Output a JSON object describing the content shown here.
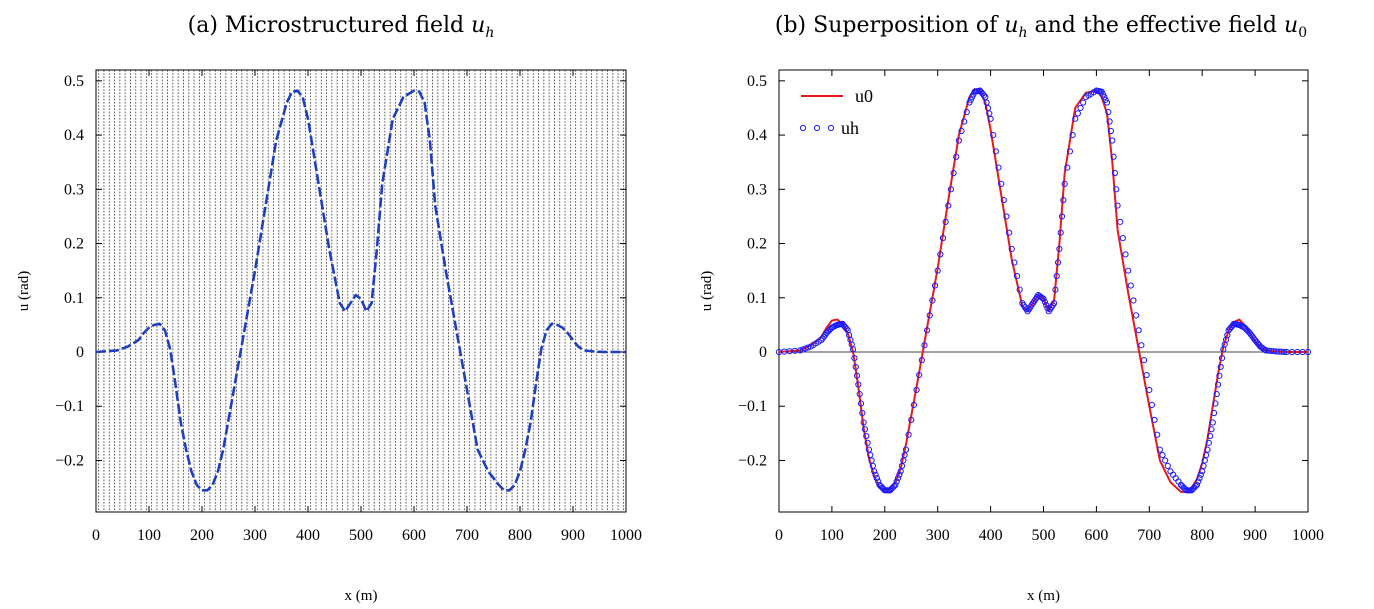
{
  "chart_data": [
    {
      "type": "line",
      "title": "(a) Microstructured field u_h",
      "xlabel": "x (m)",
      "ylabel": "u (rad)",
      "xlim": [
        0,
        1000
      ],
      "ylim": [
        -0.295,
        0.52
      ],
      "x_ticks": [
        0,
        100,
        200,
        300,
        400,
        500,
        600,
        700,
        800,
        900,
        1000
      ],
      "y_ticks": [
        -0.2,
        -0.1,
        0,
        0.1,
        0.2,
        0.3,
        0.4,
        0.5
      ],
      "y_tick_labels": [
        "−0.2",
        "−0.1",
        "0",
        "0.1",
        "0.2",
        "0.3",
        "0.4",
        "0.5"
      ],
      "grid": "dotted vertical lines every 10 m (microstructure)",
      "series": [
        {
          "name": "",
          "color": "#1f3fbf",
          "style": "dashed (discontinuous per cell)",
          "x": [
            0,
            40,
            60,
            80,
            90,
            100,
            110,
            120,
            130,
            140,
            150,
            160,
            170,
            180,
            190,
            200,
            210,
            220,
            230,
            240,
            260,
            280,
            300,
            320,
            340,
            360,
            370,
            380,
            390,
            400,
            420,
            440,
            460,
            470,
            480,
            490,
            500,
            510,
            520,
            530,
            540,
            560,
            580,
            600,
            610,
            620,
            630,
            640,
            660,
            680,
            700,
            720,
            740,
            760,
            770,
            780,
            790,
            800,
            810,
            820,
            830,
            840,
            850,
            860,
            870,
            880,
            890,
            900,
            910,
            920,
            940,
            960,
            1000
          ],
          "y": [
            0,
            0.003,
            0.01,
            0.022,
            0.035,
            0.045,
            0.05,
            0.052,
            0.04,
            0.005,
            -0.06,
            -0.13,
            -0.18,
            -0.22,
            -0.245,
            -0.255,
            -0.255,
            -0.245,
            -0.22,
            -0.18,
            -0.07,
            0.04,
            0.15,
            0.27,
            0.39,
            0.46,
            0.48,
            0.482,
            0.47,
            0.43,
            0.31,
            0.19,
            0.09,
            0.075,
            0.09,
            0.105,
            0.098,
            0.075,
            0.09,
            0.19,
            0.31,
            0.43,
            0.47,
            0.482,
            0.48,
            0.46,
            0.39,
            0.27,
            0.15,
            0.04,
            -0.07,
            -0.18,
            -0.22,
            -0.245,
            -0.255,
            -0.255,
            -0.245,
            -0.22,
            -0.18,
            -0.13,
            -0.06,
            0.005,
            0.04,
            0.052,
            0.05,
            0.045,
            0.035,
            0.022,
            0.01,
            0.003,
            0.001,
            0,
            0
          ]
        }
      ]
    },
    {
      "type": "line",
      "title": "(b) Superposition of u_h and the effective field u_0",
      "xlabel": "x (m)",
      "ylabel": "u (rad)",
      "xlim": [
        0,
        1000
      ],
      "ylim": [
        -0.295,
        0.52
      ],
      "x_ticks": [
        0,
        100,
        200,
        300,
        400,
        500,
        600,
        700,
        800,
        900,
        1000
      ],
      "y_ticks": [
        -0.2,
        -0.1,
        0,
        0.1,
        0.2,
        0.3,
        0.4,
        0.5
      ],
      "y_tick_labels": [
        "−0.2",
        "−0.1",
        "0",
        "0.1",
        "0.2",
        "0.3",
        "0.4",
        "0.5"
      ],
      "zero_line": true,
      "legend": {
        "placement": "top-left",
        "entries": [
          "u0",
          "uh"
        ]
      },
      "series": [
        {
          "name": "u0",
          "color": "#e41a1c",
          "style": "solid line",
          "x": [
            0,
            40,
            60,
            80,
            90,
            100,
            110,
            120,
            130,
            140,
            150,
            160,
            170,
            180,
            190,
            200,
            210,
            220,
            230,
            240,
            260,
            280,
            300,
            320,
            340,
            360,
            370,
            380,
            390,
            400,
            420,
            440,
            460,
            470,
            480,
            490,
            500,
            510,
            520,
            530,
            540,
            560,
            580,
            600,
            610,
            620,
            630,
            640,
            660,
            680,
            700,
            720,
            740,
            760,
            770,
            780,
            790,
            800,
            810,
            820,
            830,
            840,
            850,
            860,
            870,
            880,
            890,
            900,
            910,
            920,
            940,
            960,
            1000
          ],
          "y": [
            0,
            0.003,
            0.012,
            0.028,
            0.045,
            0.058,
            0.06,
            0.052,
            0.035,
            0.0,
            -0.065,
            -0.14,
            -0.195,
            -0.23,
            -0.25,
            -0.255,
            -0.252,
            -0.24,
            -0.215,
            -0.17,
            -0.065,
            0.045,
            0.155,
            0.28,
            0.4,
            0.47,
            0.485,
            0.48,
            0.46,
            0.41,
            0.29,
            0.17,
            0.085,
            0.075,
            0.09,
            0.105,
            0.098,
            0.075,
            0.095,
            0.2,
            0.33,
            0.45,
            0.478,
            0.482,
            0.47,
            0.44,
            0.35,
            0.225,
            0.11,
            0.005,
            -0.1,
            -0.2,
            -0.24,
            -0.258,
            -0.258,
            -0.25,
            -0.235,
            -0.205,
            -0.16,
            -0.1,
            -0.04,
            0.01,
            0.04,
            0.055,
            0.06,
            0.05,
            0.035,
            0.02,
            0.008,
            0.003,
            0.001,
            0,
            0
          ]
        },
        {
          "name": "uh",
          "color": "#1a1aff",
          "style": "open circle markers",
          "x": [
            0,
            40,
            60,
            80,
            90,
            100,
            110,
            120,
            130,
            140,
            150,
            160,
            170,
            180,
            190,
            200,
            210,
            220,
            230,
            240,
            260,
            280,
            300,
            320,
            340,
            360,
            370,
            380,
            390,
            400,
            420,
            440,
            460,
            470,
            480,
            490,
            500,
            510,
            520,
            530,
            540,
            560,
            580,
            600,
            610,
            620,
            630,
            640,
            660,
            680,
            700,
            720,
            740,
            760,
            770,
            780,
            790,
            800,
            810,
            820,
            830,
            840,
            850,
            860,
            870,
            880,
            890,
            900,
            910,
            920,
            940,
            960,
            1000
          ],
          "y": [
            0,
            0.003,
            0.01,
            0.022,
            0.035,
            0.045,
            0.05,
            0.052,
            0.04,
            0.005,
            -0.06,
            -0.13,
            -0.18,
            -0.22,
            -0.245,
            -0.255,
            -0.255,
            -0.245,
            -0.22,
            -0.18,
            -0.07,
            0.04,
            0.15,
            0.27,
            0.39,
            0.46,
            0.48,
            0.482,
            0.47,
            0.43,
            0.31,
            0.19,
            0.09,
            0.075,
            0.09,
            0.105,
            0.098,
            0.075,
            0.09,
            0.19,
            0.31,
            0.43,
            0.47,
            0.482,
            0.48,
            0.46,
            0.39,
            0.27,
            0.15,
            0.04,
            -0.07,
            -0.18,
            -0.22,
            -0.245,
            -0.255,
            -0.255,
            -0.245,
            -0.22,
            -0.18,
            -0.13,
            -0.06,
            0.005,
            0.04,
            0.052,
            0.05,
            0.045,
            0.035,
            0.022,
            0.01,
            0.003,
            0.001,
            0,
            0
          ]
        }
      ]
    }
  ]
}
